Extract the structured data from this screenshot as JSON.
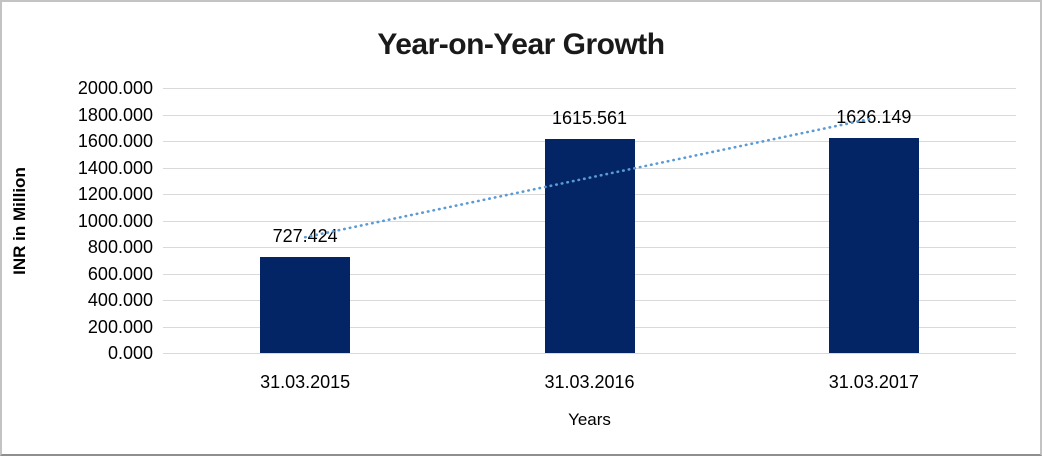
{
  "chart_data": {
    "type": "bar",
    "title": "Year-on-Year Growth",
    "categories": [
      "31.03.2015",
      "31.03.2016",
      "31.03.2017"
    ],
    "values": [
      727.424,
      1615.561,
      1626.149
    ],
    "data_labels": [
      "727.424",
      "1615.561",
      "1626.149"
    ],
    "xlabel": "Years",
    "ylabel": "INR in Million",
    "ylim": [
      0,
      2000
    ],
    "ytick_step": 200,
    "ytick_labels": [
      "0.000",
      "200.000",
      "400.000",
      "600.000",
      "800.000",
      "1000.000",
      "1200.000",
      "1400.000",
      "1600.000",
      "1800.000",
      "2000.000"
    ],
    "grid": true,
    "legend": "none",
    "bar_color": "#032566",
    "trendline": {
      "type": "linear",
      "style": "dotted",
      "color": "#5b9bd5"
    },
    "gridline_color": "#d9d9d9",
    "text_color": "#000000"
  }
}
